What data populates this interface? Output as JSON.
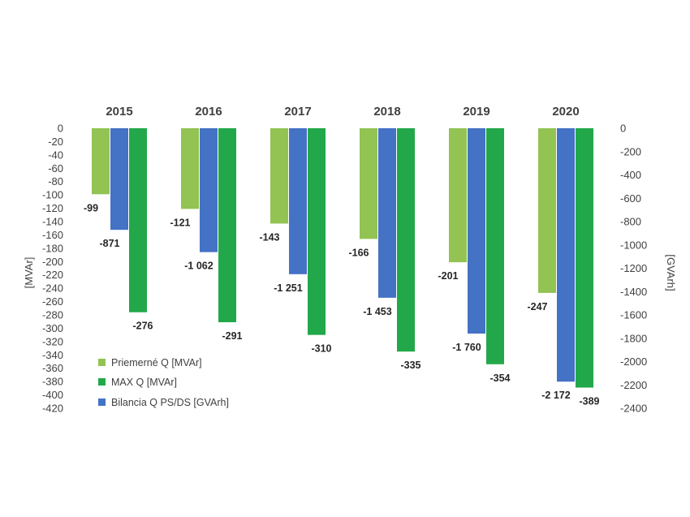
{
  "chart_data": {
    "type": "bar",
    "categories": [
      "2015",
      "2016",
      "2017",
      "2018",
      "2019",
      "2020"
    ],
    "series": [
      {
        "name": "Priemerné Q [MVAr]",
        "axis": "left",
        "color": "#92c353",
        "values": [
          -99,
          -121,
          -143,
          -166,
          -201,
          -247
        ],
        "labels": [
          "-99",
          "-121",
          "-143",
          "-166",
          "-201",
          "-247"
        ]
      },
      {
        "name": "Bilancia Q PS/DS [GVArh]",
        "axis": "right",
        "color": "#4472c4",
        "values": [
          -871,
          -1062,
          -1251,
          -1453,
          -1760,
          -2172
        ],
        "labels": [
          "-871",
          "-1 062",
          "-1 251",
          "-1 453",
          "-1 760",
          "-2 172"
        ]
      },
      {
        "name": "MAX Q [MVAr]",
        "axis": "left",
        "color": "#22a84a",
        "values": [
          -276,
          -291,
          -310,
          -335,
          -354,
          -389
        ],
        "labels": [
          "-276",
          "-291",
          "-310",
          "-335",
          "-354",
          "-389"
        ]
      }
    ],
    "legend_order": [
      0,
      2,
      1
    ],
    "ylabel_left": "[MVAr]",
    "ylabel_right": "[GVArh]",
    "ylim_left": [
      -420,
      0
    ],
    "ylim_right": [
      -2400,
      0
    ],
    "yticks_left": [
      "0",
      "-20",
      "-40",
      "-60",
      "-80",
      "-100",
      "-120",
      "-140",
      "-160",
      "-180",
      "-200",
      "-220",
      "-240",
      "-260",
      "-280",
      "-300",
      "-320",
      "-340",
      "-360",
      "-380",
      "-400",
      "-420"
    ],
    "yticks_right": [
      "0",
      "-200",
      "-400",
      "-600",
      "-800",
      "-1000",
      "-1200",
      "-1400",
      "-1600",
      "-1800",
      "-2000",
      "-2200",
      "-2400"
    ],
    "grid": false,
    "legend_position": "bottom-left"
  }
}
